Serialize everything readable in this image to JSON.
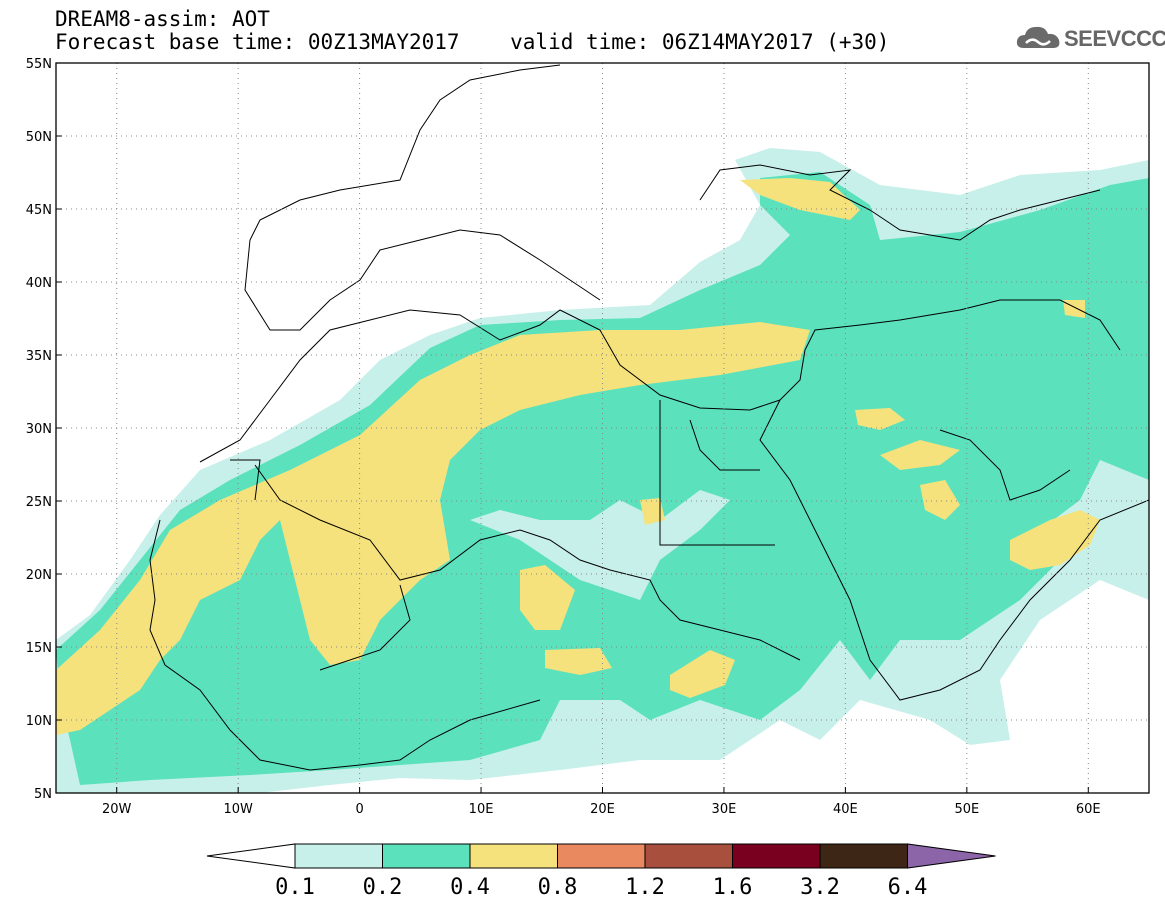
{
  "title": {
    "line1": "DREAM8-assim: AOT",
    "line2": "Forecast base time: 00Z13MAY2017    valid time: 06Z14MAY2017 (+30)"
  },
  "logo": {
    "text": "SEEVCCC",
    "icon": "cloud-icon"
  },
  "map": {
    "lon_range": [
      -25,
      65
    ],
    "lat_range": [
      5,
      55
    ],
    "lon_ticks": [
      {
        "value": -20,
        "label": "20W"
      },
      {
        "value": -10,
        "label": "10W"
      },
      {
        "value": 0,
        "label": "0"
      },
      {
        "value": 10,
        "label": "10E"
      },
      {
        "value": 20,
        "label": "20E"
      },
      {
        "value": 30,
        "label": "30E"
      },
      {
        "value": 40,
        "label": "40E"
      },
      {
        "value": 50,
        "label": "50E"
      },
      {
        "value": 60,
        "label": "60E"
      }
    ],
    "lat_ticks": [
      {
        "value": 55,
        "label": "55N"
      },
      {
        "value": 50,
        "label": "50N"
      },
      {
        "value": 45,
        "label": "45N"
      },
      {
        "value": 40,
        "label": "40N"
      },
      {
        "value": 35,
        "label": "35N"
      },
      {
        "value": 30,
        "label": "30N"
      },
      {
        "value": 25,
        "label": "25N"
      },
      {
        "value": 20,
        "label": "20N"
      },
      {
        "value": 15,
        "label": "15N"
      },
      {
        "value": 10,
        "label": "10N"
      },
      {
        "value": 5,
        "label": "5N"
      }
    ],
    "grid": "dotted"
  },
  "colorbar": {
    "colors": [
      "#c8f0ea",
      "#5ce1bd",
      "#f5e27c",
      "#e8895f",
      "#a84f3e",
      "#7a0020",
      "#3d2615",
      "#8c64a8"
    ],
    "labels": [
      "0.1",
      "0.2",
      "0.4",
      "0.8",
      "1.2",
      "1.6",
      "3.2",
      "6.4"
    ]
  }
}
